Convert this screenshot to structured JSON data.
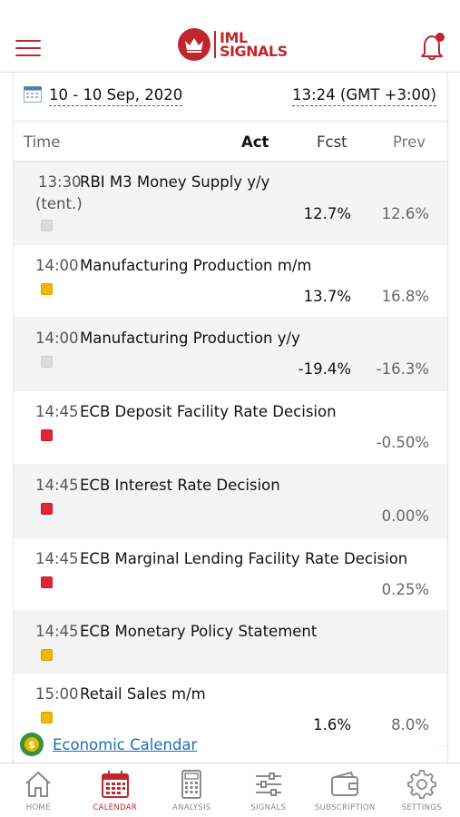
{
  "header": {
    "logo_line1": "IML",
    "logo_line2": "SIGNALS"
  },
  "datebar": {
    "date_range": "10 - 10 Sep, 2020",
    "timezone": "13:24 (GMT +3:00)"
  },
  "columns": {
    "time": "Time",
    "act": "Act",
    "fcst": "Fcst",
    "prev": "Prev"
  },
  "events": [
    {
      "time": "13:30",
      "title": "RBI M3 Money Supply y/y",
      "sub": "(tent.)",
      "importance": "none",
      "act": "",
      "fcst": "12.7%",
      "prev": "12.6%"
    },
    {
      "time": "14:00",
      "title": "Manufacturing Production m/m",
      "sub": "",
      "importance": "medium",
      "act": "",
      "fcst": "13.7%",
      "prev": "16.8%"
    },
    {
      "time": "14:00",
      "title": "Manufacturing Production y/y",
      "sub": "",
      "importance": "none",
      "act": "",
      "fcst": "-19.4%",
      "prev": "-16.3%"
    },
    {
      "time": "14:45",
      "title": "ECB Deposit Facility Rate Decision",
      "sub": "",
      "importance": "high",
      "act": "",
      "fcst": "",
      "prev": "-0.50%"
    },
    {
      "time": "14:45",
      "title": "ECB Interest Rate Decision",
      "sub": "",
      "importance": "high",
      "act": "",
      "fcst": "",
      "prev": "0.00%"
    },
    {
      "time": "14:45",
      "title": "ECB Marginal Lending Facility Rate Decision",
      "sub": "",
      "importance": "high",
      "act": "",
      "fcst": "",
      "prev": "0.25%"
    },
    {
      "time": "14:45",
      "title": "ECB Monetary Policy Statement",
      "sub": "",
      "importance": "medium",
      "act": "",
      "fcst": "",
      "prev": ""
    },
    {
      "time": "15:00",
      "title": "Retail Sales m/m",
      "sub": "",
      "importance": "medium",
      "act": "",
      "fcst": "1.6%",
      "prev": "8.0%"
    }
  ],
  "footer": {
    "link_text": "Economic Calendar"
  },
  "tabs": [
    {
      "label": "HOME",
      "icon": "home-icon",
      "active": false
    },
    {
      "label": "CALENDAR",
      "icon": "calendar-icon",
      "active": true
    },
    {
      "label": "ANALYSIS",
      "icon": "calculator-icon",
      "active": false
    },
    {
      "label": "SIGNALS",
      "icon": "sliders-icon",
      "active": false
    },
    {
      "label": "SUBSCRIPTION",
      "icon": "wallet-icon",
      "active": false
    },
    {
      "label": "SETTINGS",
      "icon": "gear-icon",
      "active": false
    }
  ],
  "colors": {
    "brand": "#c0272d",
    "high": "#e0263a",
    "medium": "#f2b705",
    "none": "#dcdcdc",
    "link": "#1a6fb5"
  }
}
